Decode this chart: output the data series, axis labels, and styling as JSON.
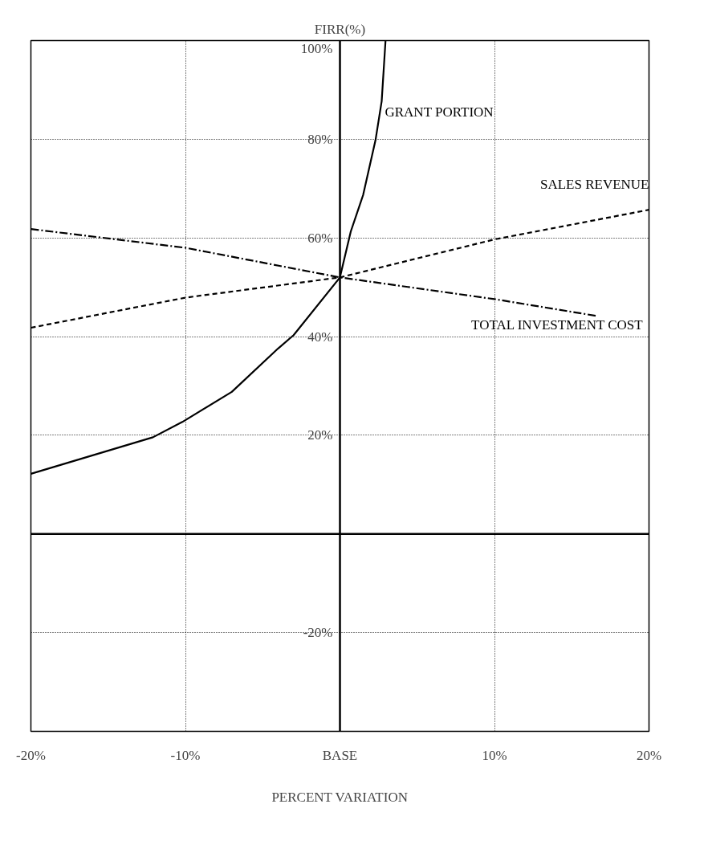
{
  "chart_data": {
    "type": "line",
    "ylabel": "FIRR(%)",
    "xlabel": "PERCENT VARIATION",
    "xlim": [
      -20,
      20
    ],
    "ylim": [
      -40,
      100
    ],
    "xticks": [
      {
        "value": -20,
        "label": "-20%"
      },
      {
        "value": -10,
        "label": "-10%"
      },
      {
        "value": 0,
        "label": "BASE"
      },
      {
        "value": 10,
        "label": "10%"
      },
      {
        "value": 20,
        "label": "20%"
      }
    ],
    "yticks": [
      {
        "value": -20,
        "label": "-20%"
      },
      {
        "value": 0,
        "label": null
      },
      {
        "value": 20,
        "label": "20%"
      },
      {
        "value": 40,
        "label": "40%"
      },
      {
        "value": 60,
        "label": "60%"
      },
      {
        "value": 80,
        "label": "80%"
      },
      {
        "value": 100,
        "label": "100%"
      }
    ],
    "grid": true,
    "legend": false,
    "marker": "none",
    "series": [
      {
        "name": "GRANT PORTION",
        "color": "#000000",
        "line_style": "solid",
        "x": [
          -20,
          -12.1,
          -10.2,
          -7,
          -4,
          -3,
          0,
          0.7,
          1.5,
          2.3,
          2.7,
          2.95
        ],
        "values": [
          12.2,
          19.6,
          22.7,
          28.8,
          37.6,
          40.3,
          52,
          61.3,
          68.7,
          79.8,
          87.7,
          100
        ]
      },
      {
        "name": "SALES REVENUE",
        "color": "#000000",
        "line_style": "dashed",
        "x": [
          -20,
          -10,
          0,
          10,
          20
        ],
        "values": [
          41.8,
          47.9,
          52,
          59.7,
          65.7
        ]
      },
      {
        "name": "TOTAL INVESTMENT COST",
        "color": "#000000",
        "line_style": "dashdot",
        "x": [
          -20,
          -10,
          0,
          10,
          16.6
        ],
        "values": [
          61.8,
          58,
          52,
          47.6,
          44.2
        ]
      }
    ]
  }
}
